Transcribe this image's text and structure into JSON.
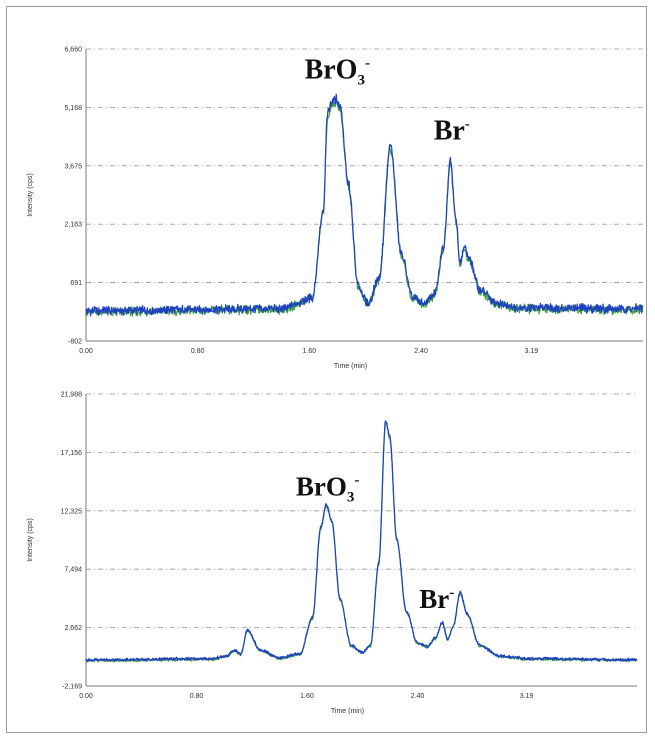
{
  "chart_data": [
    {
      "type": "line",
      "xlabel": "Time (min)",
      "ylabel": "Intensity (cps)",
      "xlim": [
        0,
        3.99
      ],
      "ylim": [
        -802,
        6660
      ],
      "x_ticks": [
        "0.00",
        "0.80",
        "1.60",
        "2.40",
        "3.19"
      ],
      "x_tick_values": [
        0,
        0.8,
        1.6,
        2.4,
        3.19
      ],
      "y_ticks": [
        "6,660",
        "5,168",
        "3,675",
        "2,183",
        "691",
        "-802"
      ],
      "y_tick_values": [
        6660,
        5168,
        3675,
        2183,
        691,
        -802
      ],
      "grid": "horizontal dash-dot",
      "annotations": [
        {
          "text": "BrO",
          "sub": "3",
          "sup": "-",
          "x": 1.8,
          "y": 5900
        },
        {
          "text": "Br",
          "sub": "",
          "sup": "-",
          "x": 2.62,
          "y": 4350
        }
      ],
      "series": [
        {
          "color": "#1f3fc4",
          "x": [
            0,
            1.4,
            1.62,
            1.7,
            1.73,
            1.76,
            1.79,
            1.82,
            1.88,
            1.95,
            2.02,
            2.1,
            2.18,
            2.26,
            2.34,
            2.42,
            2.5,
            2.56,
            2.61,
            2.65,
            2.68,
            2.71,
            2.75,
            2.82,
            2.95,
            3.1,
            3.99
          ],
          "y": [
            -30,
            20,
            300,
            2500,
            5000,
            5350,
            5400,
            5200,
            3200,
            600,
            150,
            800,
            4200,
            1400,
            300,
            150,
            400,
            1600,
            3850,
            2300,
            1200,
            1600,
            1250,
            500,
            150,
            50,
            20
          ]
        },
        {
          "color": "#3aa33a",
          "x": [
            0,
            1.4,
            1.62,
            1.7,
            1.73,
            1.76,
            1.79,
            1.82,
            1.88,
            1.95,
            2.02,
            2.1,
            2.18,
            2.26,
            2.34,
            2.42,
            2.5,
            2.56,
            2.61,
            2.65,
            2.68,
            2.71,
            2.75,
            2.82,
            2.95,
            3.1,
            3.99
          ],
          "y": [
            -60,
            0,
            280,
            2450,
            4900,
            5250,
            5300,
            5100,
            3150,
            560,
            120,
            760,
            4100,
            1350,
            270,
            120,
            370,
            1550,
            3750,
            2250,
            1150,
            1550,
            1200,
            460,
            120,
            20,
            -10
          ]
        }
      ]
    },
    {
      "type": "line",
      "xlabel": "Time (min)",
      "ylabel": "Intensity (cps)",
      "xlim": [
        0,
        3.99
      ],
      "ylim": [
        -2169,
        21988
      ],
      "x_ticks": [
        "0.00",
        "0.80",
        "1.60",
        "2.40",
        "3.19"
      ],
      "x_tick_values": [
        0,
        0.8,
        1.6,
        2.4,
        3.19
      ],
      "y_ticks": [
        "21,988",
        "17,156",
        "12,325",
        "7,494",
        "2,662",
        "-2,169"
      ],
      "y_tick_values": [
        21988,
        17156,
        12325,
        7494,
        2662,
        -2169
      ],
      "grid": "horizontal dash-dot",
      "annotations": [
        {
          "text": "BrO",
          "sub": "3",
          "sup": "-",
          "x": 1.75,
          "y": 13600
        },
        {
          "text": "Br",
          "sub": "",
          "sup": "-",
          "x": 2.54,
          "y": 4300
        }
      ],
      "series": [
        {
          "color": "#1f3fc4",
          "x": [
            0,
            0.9,
            1.02,
            1.07,
            1.12,
            1.17,
            1.26,
            1.4,
            1.55,
            1.64,
            1.7,
            1.74,
            1.78,
            1.84,
            1.92,
            2.0,
            2.06,
            2.12,
            2.17,
            2.2,
            2.25,
            2.32,
            2.4,
            2.47,
            2.53,
            2.58,
            2.62,
            2.66,
            2.71,
            2.76,
            2.85,
            3.0,
            3.2,
            3.99
          ],
          "y": [
            -20,
            80,
            300,
            800,
            500,
            2500,
            800,
            150,
            500,
            3500,
            11000,
            12900,
            11500,
            5000,
            1200,
            600,
            1200,
            8000,
            19800,
            18500,
            10000,
            4000,
            1400,
            1100,
            1800,
            3100,
            1700,
            2800,
            5600,
            3800,
            1200,
            300,
            100,
            0
          ]
        },
        {
          "color": "#3aa33a",
          "x": [
            0,
            0.9,
            1.02,
            1.07,
            1.12,
            1.17,
            1.26,
            1.4,
            1.55,
            1.64,
            1.7,
            1.74,
            1.78,
            1.84,
            1.92,
            2.0,
            2.06,
            2.12,
            2.17,
            2.2,
            2.25,
            2.32,
            2.4,
            2.47,
            2.53,
            2.58,
            2.62,
            2.66,
            2.71,
            2.76,
            2.85,
            3.0,
            3.2,
            3.99
          ],
          "y": [
            -80,
            40,
            260,
            760,
            450,
            2420,
            760,
            110,
            460,
            3420,
            10850,
            12750,
            11380,
            4920,
            1150,
            560,
            1150,
            7900,
            19600,
            18300,
            9900,
            3920,
            1350,
            1060,
            1750,
            3030,
            1660,
            2740,
            5500,
            3720,
            1160,
            250,
            50,
            -40
          ]
        }
      ]
    }
  ]
}
